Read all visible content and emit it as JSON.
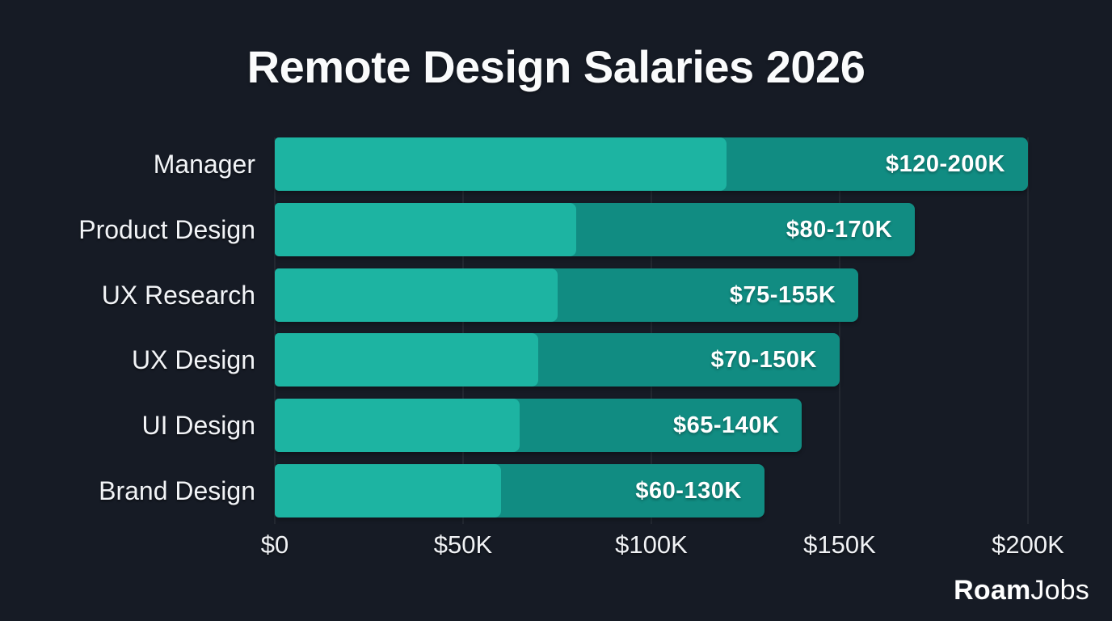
{
  "title": "Remote Design Salaries 2026",
  "brand": {
    "part1": "Roam",
    "part2": "Jobs"
  },
  "colors": {
    "background": "#161b25",
    "bar_range_low": "#1db4a2",
    "bar_range_high": "#118c82",
    "text": "#fafbfc",
    "gridline": "rgba(255,255,255,0.06)"
  },
  "chart_data": {
    "type": "bar",
    "orientation": "horizontal",
    "title": "Remote Design Salaries 2026",
    "categories": [
      "Manager",
      "Product Design",
      "UX Research",
      "UX Design",
      "UI Design",
      "Brand Design"
    ],
    "series": [
      {
        "name": "salary-min-k",
        "values": [
          120,
          80,
          75,
          70,
          65,
          60
        ]
      },
      {
        "name": "salary-max-k",
        "values": [
          200,
          170,
          155,
          150,
          140,
          130
        ]
      }
    ],
    "bar_labels": [
      "$120-200K",
      "$80-170K",
      "$75-155K",
      "$70-150K",
      "$65-140K",
      "$60-130K"
    ],
    "xtick_labels": [
      "$0",
      "$50K",
      "$100K",
      "$150K",
      "$200K"
    ],
    "xtick_values": [
      0,
      50,
      100,
      150,
      200
    ],
    "xlim": [
      0,
      200
    ],
    "xlabel": "",
    "ylabel": "",
    "grid": "vertical-faint",
    "legend": "none"
  }
}
